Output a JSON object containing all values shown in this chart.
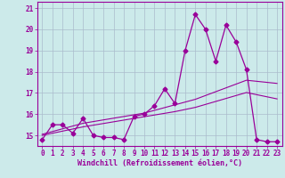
{
  "xlabel": "Windchill (Refroidissement éolien,°C)",
  "xlim": [
    -0.5,
    23.5
  ],
  "ylim": [
    14.5,
    21.3
  ],
  "yticks": [
    15,
    16,
    17,
    18,
    19,
    20,
    21
  ],
  "xticks": [
    0,
    1,
    2,
    3,
    4,
    5,
    6,
    7,
    8,
    9,
    10,
    11,
    12,
    13,
    14,
    15,
    16,
    17,
    18,
    19,
    20,
    21,
    22,
    23
  ],
  "bg_color": "#cceaea",
  "line_color": "#990099",
  "grid_color": "#aabbcc",
  "x_data": [
    0,
    1,
    2,
    3,
    4,
    5,
    6,
    7,
    8,
    9,
    10,
    11,
    12,
    13,
    14,
    15,
    16,
    17,
    18,
    19,
    20,
    21,
    22,
    23
  ],
  "y_main": [
    14.8,
    15.5,
    15.5,
    15.1,
    15.8,
    15.0,
    14.9,
    14.9,
    14.8,
    15.9,
    16.0,
    16.4,
    17.2,
    16.5,
    19.0,
    20.7,
    20.0,
    18.5,
    20.2,
    19.4,
    18.1,
    14.8,
    14.7,
    14.7
  ],
  "y_trend1": [
    15.05,
    15.18,
    15.31,
    15.44,
    15.57,
    15.65,
    15.73,
    15.81,
    15.89,
    15.97,
    16.05,
    16.18,
    16.31,
    16.44,
    16.57,
    16.7,
    16.88,
    17.06,
    17.24,
    17.42,
    17.6,
    17.55,
    17.5,
    17.45
  ],
  "y_trend2": [
    15.0,
    15.1,
    15.2,
    15.3,
    15.4,
    15.48,
    15.56,
    15.64,
    15.72,
    15.8,
    15.88,
    15.96,
    16.04,
    16.12,
    16.22,
    16.32,
    16.46,
    16.6,
    16.74,
    16.88,
    17.02,
    16.92,
    16.82,
    16.72
  ],
  "marker": "D",
  "markersize": 2.5,
  "tick_fontsize": 5.5,
  "xlabel_fontsize": 6.0
}
